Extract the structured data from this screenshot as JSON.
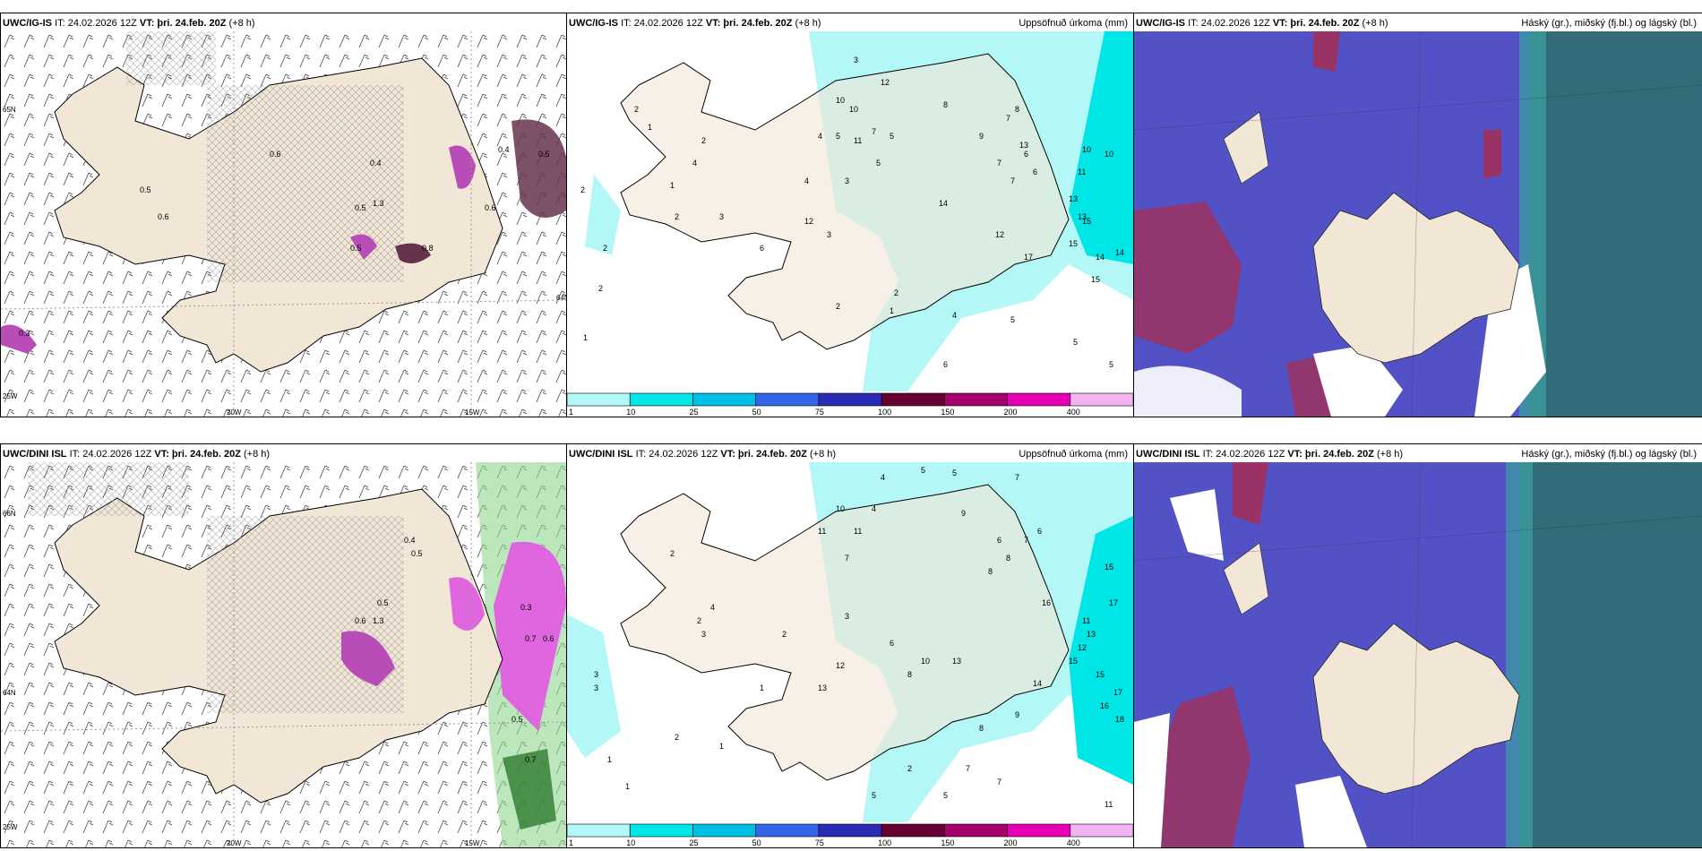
{
  "panels": [
    {
      "model": "UWC/IG-IS",
      "it": "IT: 24.02.2026 12Z",
      "vt_label": "VT:",
      "vt": "þri. 24.feb. 20Z",
      "lead": "(+8 h)",
      "right_title": ""
    },
    {
      "model": "UWC/IG-IS",
      "it": "IT: 24.02.2026 12Z",
      "vt_label": "VT:",
      "vt": "þri. 24.feb. 20Z",
      "lead": "(+8 h)",
      "right_title": "Uppsöfnuð úrkoma (mm)"
    },
    {
      "model": "UWC/IG-IS",
      "it": "IT: 24.02.2026 12Z",
      "vt_label": "VT:",
      "vt": "þri. 24.feb. 20Z",
      "lead": "(+8 h)",
      "right_title": "Háský (gr.), miðský (fj.bl.) og lágský (bl.)"
    },
    {
      "model": "UWC/DINI ISL",
      "it": "IT: 24.02.2026 12Z",
      "vt_label": "VT:",
      "vt": "þri. 24.feb. 20Z",
      "lead": "(+8 h)",
      "right_title": ""
    },
    {
      "model": "UWC/DINI ISL",
      "it": "IT: 24.02.2026 12Z",
      "vt_label": "VT:",
      "vt": "þri. 24.feb. 20Z",
      "lead": "(+8 h)",
      "right_title": "Uppsöfnuð úrkoma (mm)"
    },
    {
      "model": "UWC/DINI ISL",
      "it": "IT: 24.02.2026 12Z",
      "vt_label": "VT:",
      "vt": "þri. 24.feb. 20Z",
      "lead": "(+8 h)",
      "right_title": "Háský (gr.), miðský (fj.bl.) og lágský (bl.)"
    }
  ],
  "grid_labels": {
    "lon_20w": "20W",
    "lon_15w": "15W",
    "lon_25w": "25W",
    "lat_65n": "65N",
    "lat_64n": "64N",
    "lat_66n": "66N"
  },
  "colorbar": {
    "ticks": [
      "1",
      "10",
      "25",
      "50",
      "75",
      "100",
      "150",
      "200",
      "400"
    ],
    "colors": [
      "#b3f7f7",
      "#00e6e6",
      "#00bfe6",
      "#3366e6",
      "#2a2ab3",
      "#660033",
      "#a3006b",
      "#e600b3",
      "#f2b3f2"
    ]
  },
  "precip_values_top": [
    "3",
    "12",
    "10",
    "10",
    "4",
    "5",
    "11",
    "7",
    "5",
    "3",
    "8",
    "9",
    "7",
    "7",
    "6",
    "13",
    "10",
    "8",
    "7",
    "6",
    "11",
    "14",
    "13",
    "10",
    "12",
    "13",
    "17",
    "15",
    "15",
    "14",
    "14",
    "15",
    "2",
    "2",
    "2",
    "1",
    "2",
    "1",
    "2",
    "4",
    "1",
    "2",
    "3",
    "6",
    "12",
    "4",
    "5",
    "2",
    "1",
    "2",
    "4",
    "5",
    "5",
    "5",
    "6",
    "3"
  ],
  "precip_values_bottom": [
    "4",
    "5",
    "5",
    "7",
    "4",
    "11",
    "10",
    "9",
    "11",
    "7",
    "6",
    "8",
    "8",
    "7",
    "6",
    "15",
    "11",
    "13",
    "12",
    "15",
    "17",
    "15",
    "16",
    "18",
    "17",
    "14",
    "11",
    "7",
    "7",
    "5",
    "2",
    "3",
    "3",
    "1",
    "1",
    "2",
    "2",
    "3",
    "4",
    "12",
    "13",
    "10",
    "8",
    "6",
    "3",
    "2",
    "1",
    "2",
    "1",
    "5",
    "8",
    "9",
    "16",
    "13"
  ],
  "wind_values_top": [
    "0.5",
    "0.6",
    "0.4",
    "0.5",
    "1.3",
    "0.8",
    "0.5",
    "0.6",
    "0.4",
    "0.5",
    "0.6",
    "0.3"
  ],
  "wind_values_bottom": [
    "0.4",
    "0.5",
    "0.6",
    "1.3",
    "0.5",
    "0.7",
    "0.6",
    "0.3",
    "0.7",
    "0.5"
  ],
  "colors": {
    "land": "#f2e6d6",
    "sea": "#ffffff",
    "precip_light": "#b3f7f7",
    "precip_mid": "#00e6e6",
    "cloud_high": "#993366",
    "cloud_mid": "#6a6ad9",
    "cloud_low": "#2f6f6f"
  }
}
